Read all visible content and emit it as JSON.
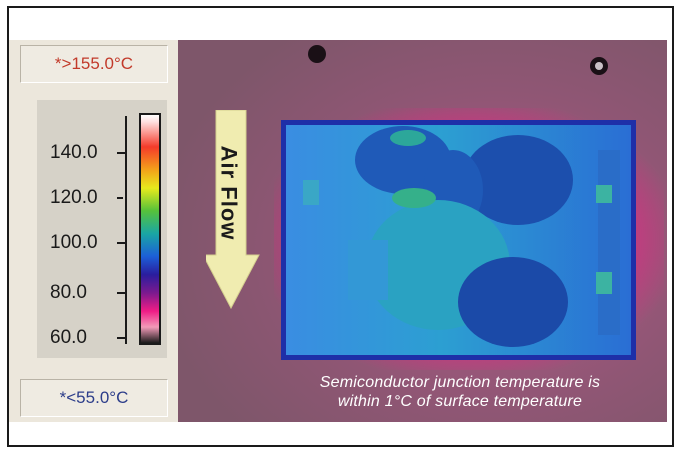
{
  "colorbar": {
    "max_out_of_range": "*>155.0°C",
    "min_out_of_range": "*<55.0°C",
    "ticks": [
      "140.0",
      "120.0",
      "100.0",
      "80.0",
      "60.0"
    ]
  },
  "overlay": {
    "arrow_label": "Air Flow",
    "caption_line1": "Semiconductor junction temperature is",
    "caption_line2": "within 1°C of surface temperature"
  },
  "colors": {
    "background_magenta": "#8c5570",
    "hot_pink": "#f01c86",
    "cool_blue": "#2f6fd6",
    "arrow_fill": "#f0ecb0"
  }
}
